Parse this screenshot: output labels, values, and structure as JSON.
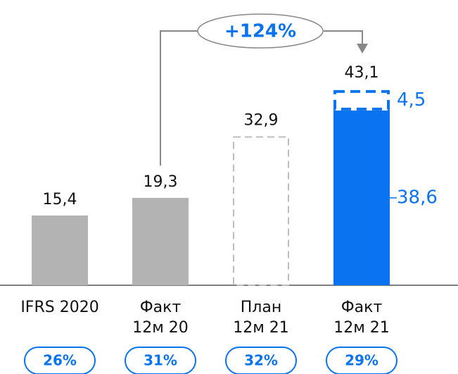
{
  "chart_data": {
    "type": "bar",
    "categories": [
      "IFRS 2020",
      "Факт\n12м 20",
      "План\n12м 21",
      "Факт\n12м 21"
    ],
    "ylim": [
      0,
      63
    ],
    "series": [
      {
        "values": [
          15.4,
          19.3,
          32.9,
          38.6
        ],
        "value_labels": [
          "15,4",
          "19,3",
          "32,9",
          "38,6"
        ],
        "colors": [
          "#b3b3b3",
          "#b3b3b3",
          "#bdbdbd",
          "#0a74f0"
        ],
        "styles": [
          "solid",
          "solid",
          "dashed",
          "solid"
        ]
      },
      {
        "values": [
          null,
          null,
          null,
          4.5
        ],
        "value_labels": [
          null,
          null,
          null,
          "4,5"
        ],
        "colors": [
          null,
          null,
          null,
          "#0a74f0"
        ],
        "styles": [
          null,
          null,
          null,
          "dashed"
        ]
      }
    ],
    "totals": [
      null,
      null,
      null,
      43.1
    ],
    "total_labels": [
      null,
      null,
      null,
      "43,1"
    ],
    "annotation": "+124%",
    "badges": {
      "values": [
        26,
        31,
        32,
        29
      ],
      "value_labels": [
        "26%",
        "31%",
        "32%",
        "29%"
      ],
      "color": "#0a74f0"
    }
  }
}
